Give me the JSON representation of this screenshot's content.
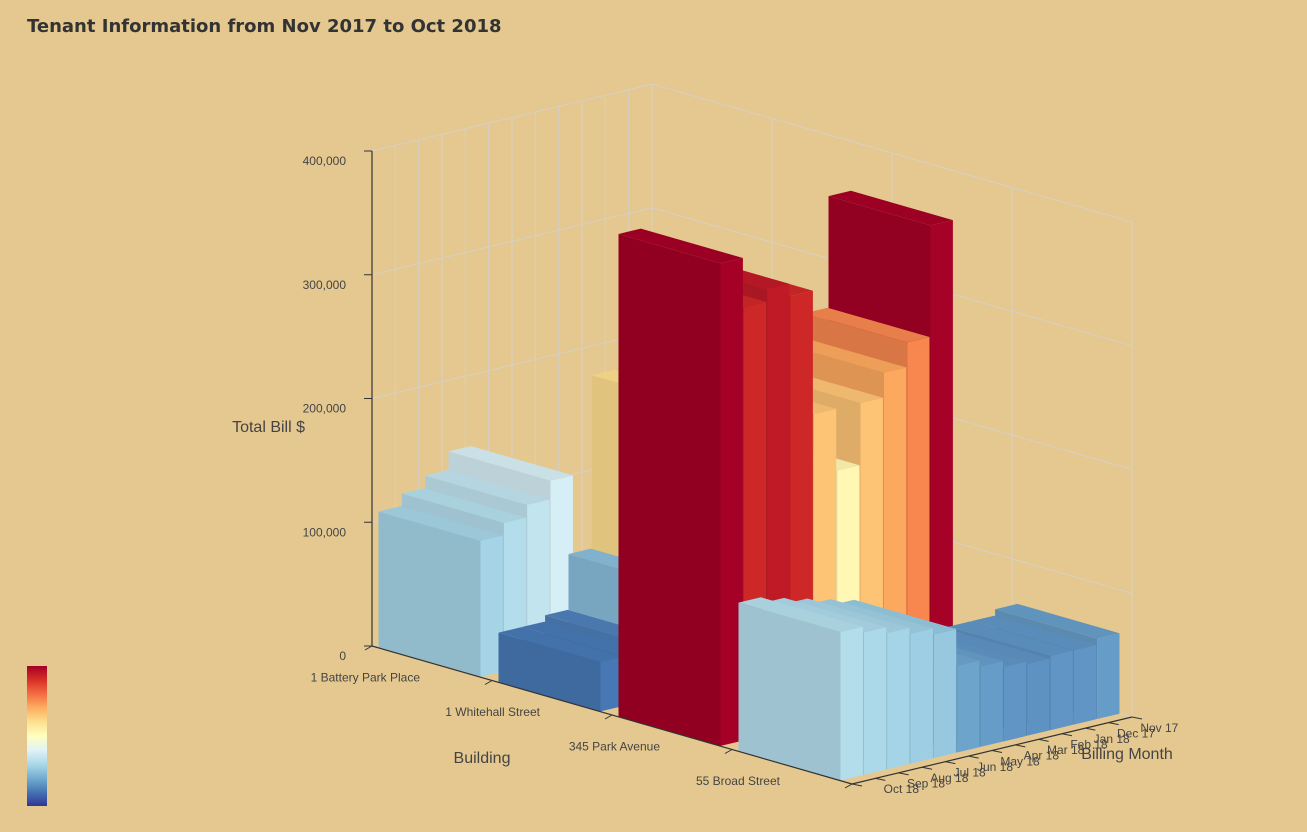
{
  "title": "Tenant Information from Nov 2017 to Oct 2018",
  "colors": {
    "background": "#e5c890",
    "grid": "#d6d0c4",
    "axis": "#333333",
    "text": "#444444"
  },
  "colorscale": [
    "#313695",
    "#4575b4",
    "#74add1",
    "#abd9e9",
    "#e0f3f8",
    "#ffffbf",
    "#fee090",
    "#fdae61",
    "#f46d43",
    "#d73027",
    "#a50026"
  ],
  "chart_data": {
    "type": "bar3d",
    "title": "Tenant Information from Nov 2017 to Oct 2018",
    "xlabel": "Building",
    "ylabel": "Billing Month",
    "zlabel": "Total Bill $",
    "buildings": [
      "1 Battery Park Place",
      "1 Whitehall Street",
      "345 Park Avenue",
      "55 Broad Street"
    ],
    "months": [
      "Nov 17",
      "Dec 17",
      "Jan 18",
      "Feb 18",
      "Mar 18",
      "Apr 18",
      "May 18",
      "Jun 18",
      "Jul 18",
      "Aug 18",
      "Sep 18",
      "Oct 18"
    ],
    "zlim": [
      0,
      400000
    ],
    "zticks": [
      "0",
      "100,000",
      "200,000",
      "300,000",
      "400,000"
    ],
    "grid": true,
    "colorbar": "left-bottom",
    "series": [
      {
        "building": "1 Battery Park Place",
        "months": [
          "Jul 18",
          "Aug 18",
          "Sep 18",
          "Oct 18"
        ],
        "values": [
          145000,
          130000,
          120000,
          110000
        ]
      },
      {
        "building": "1 Whitehall Street",
        "months": [
          "Jun 18",
          "Jul 18",
          "Aug 18",
          "Sep 18",
          "Oct 18"
        ],
        "values": [
          230000,
          90000,
          45000,
          40000,
          40000
        ]
      },
      {
        "building": "345 Park Avenue",
        "months": [
          "Jan 18",
          "Feb 18",
          "Mar 18",
          "Apr 18",
          "May 18",
          "Jun 18",
          "Jul 18",
          "Aug 18",
          "Sep 18",
          "Oct 18"
        ],
        "values": [
          380000,
          290000,
          270000,
          250000,
          200000,
          250000,
          350000,
          360000,
          350000,
          390000
        ]
      },
      {
        "building": "55 Broad Street",
        "months": [
          "Nov 17",
          "Dec 17",
          "Jan 18",
          "Feb 18",
          "Mar 18",
          "Apr 18",
          "May 18",
          "Jun 18",
          "Jul 18",
          "Aug 18",
          "Sep 18",
          "Oct 18"
        ],
        "values": [
          65000,
          60000,
          60000,
          58000,
          60000,
          65000,
          70000,
          100000,
          105000,
          110000,
          115000,
          120000
        ]
      }
    ]
  }
}
